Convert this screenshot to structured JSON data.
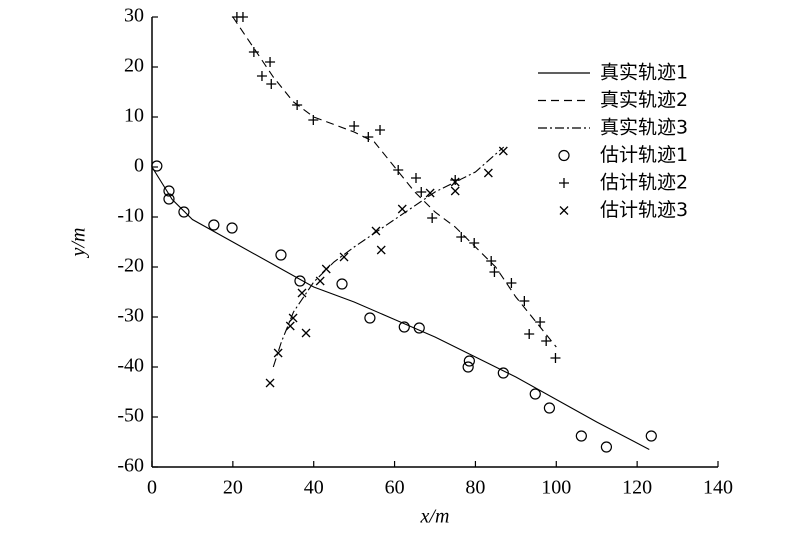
{
  "chart_data": {
    "type": "line",
    "xlabel": "x/m",
    "ylabel": "y/m",
    "xlim": [
      0,
      140
    ],
    "ylim": [
      -60,
      30
    ],
    "xticks": [
      0,
      20,
      40,
      60,
      80,
      100,
      120,
      140
    ],
    "yticks": [
      -60,
      -50,
      -40,
      -30,
      -20,
      -10,
      0,
      10,
      20,
      30
    ],
    "legend": "upper right",
    "series": [
      {
        "name": "真实轨迹1",
        "color": "#000000",
        "kind": "line",
        "dash": "solid",
        "x": [
          0,
          5,
          10,
          20,
          30,
          40,
          50,
          60,
          70,
          80,
          90,
          100,
          110,
          123
        ],
        "values": [
          0,
          -6.5,
          -10.5,
          -15,
          -19.5,
          -24,
          -27,
          -30.5,
          -34,
          -38,
          -42,
          -46.5,
          -51,
          -56.5
        ]
      },
      {
        "name": "真实轨迹2",
        "color": "#000000",
        "kind": "line",
        "dash": "dashed",
        "x": [
          20,
          25,
          30,
          35,
          40,
          50,
          55,
          60,
          65,
          70,
          75,
          80,
          85,
          90,
          95,
          100
        ],
        "values": [
          30,
          24,
          18,
          13,
          10,
          7,
          5,
          0,
          -5,
          -9,
          -12,
          -16,
          -20,
          -26,
          -31,
          -36
        ]
      },
      {
        "name": "真实轨迹3",
        "color": "#000000",
        "kind": "line",
        "dash": "dashdot",
        "x": [
          30,
          32,
          35,
          40,
          45,
          50,
          60,
          70,
          80,
          87
        ],
        "values": [
          -40,
          -35,
          -29,
          -23,
          -19,
          -16,
          -10.5,
          -5,
          -1,
          4
        ]
      },
      {
        "name": "估计轨迹1",
        "color": "#000000",
        "kind": "scatter",
        "marker": "circle",
        "x": [
          1.2,
          4.2,
          4.2,
          7.9,
          15.3,
          19.8,
          31.9,
          36.6,
          47,
          53.9,
          62.4,
          66.1,
          78.5,
          78.2,
          86.9,
          94.8,
          98.3,
          106.2,
          112.4,
          123.5
        ],
        "values": [
          0.2,
          -4.8,
          -6.4,
          -9,
          -11.6,
          -12.2,
          -17.6,
          -22.8,
          -23.4,
          -30.2,
          -32,
          -32.2,
          -38.8,
          -40,
          -41.2,
          -45.4,
          -48.2,
          -53.8,
          -56,
          -53.8
        ]
      },
      {
        "name": "估计轨迹2",
        "color": "#000000",
        "kind": "scatter",
        "marker": "plus",
        "x": [
          21,
          22.5,
          25.2,
          27.2,
          29.2,
          29.5,
          35.9,
          39.9,
          50,
          53.5,
          56.4,
          60.9,
          65.3,
          66.6,
          69.3,
          75,
          76.5,
          79.7,
          83.9,
          84.7,
          88.9,
          92.1,
          93.3,
          96,
          97.5,
          99.8
        ],
        "values": [
          30,
          30,
          23,
          18.2,
          21,
          16.6,
          12.4,
          9.4,
          8.2,
          6,
          7.4,
          -0.6,
          -2.2,
          -5,
          -10.2,
          -2.6,
          -14,
          -15.2,
          -18.8,
          -21,
          -23.2,
          -26.8,
          -33.4,
          -31,
          -34.8,
          -38.2
        ]
      },
      {
        "name": "估计轨迹3",
        "color": "#000000",
        "kind": "scatter",
        "marker": "x",
        "x": [
          29.2,
          31.2,
          34.2,
          34.9,
          37.1,
          38.1,
          41.6,
          43.1,
          47.5,
          55.4,
          56.7,
          61.9,
          68.8,
          75,
          75,
          83.2,
          86.9
        ],
        "values": [
          -43.2,
          -37.2,
          -31.8,
          -30.2,
          -25.2,
          -33.2,
          -22.8,
          -20.4,
          -18,
          -12.8,
          -16.6,
          -8.4,
          -5.2,
          -4.8,
          -3,
          -1.2,
          3.2
        ]
      }
    ]
  }
}
